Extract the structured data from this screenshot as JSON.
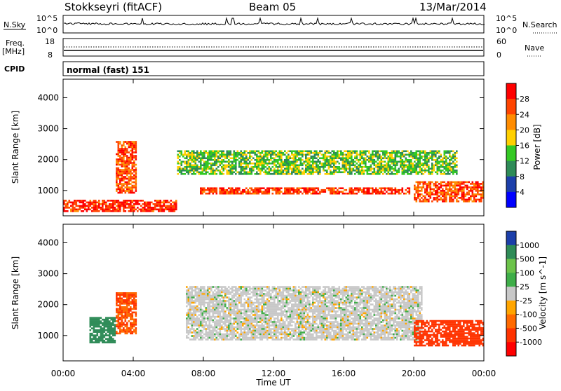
{
  "header": {
    "station": "Stokkseyri (fitACF)",
    "beam": "Beam 05",
    "date": "13/Mar/2014"
  },
  "noise_panel": {
    "left_label": "N.Sky",
    "right_label": "N.Search",
    "left_ticks": [
      "10^5",
      "10^0"
    ],
    "right_ticks": [
      "10^5",
      "10^0"
    ]
  },
  "freq_panel": {
    "left_label_line1": "Freq.",
    "left_label_line2": "[MHz]",
    "right_label": "Nave",
    "left_ticks": [
      "18",
      "8"
    ],
    "right_ticks": [
      "60",
      "0"
    ]
  },
  "cpid_panel": {
    "label": "CPID",
    "text": "normal (fast) 151"
  },
  "power_panel": {
    "ylabel": "Slant Range [km]",
    "yticks": [
      "4000",
      "3000",
      "2000",
      "1000"
    ],
    "colorbar_label": "Power [dB]",
    "colorbar_ticks": [
      "28",
      "24",
      "20",
      "16",
      "12",
      "8",
      "4"
    ],
    "colorbar_colors": [
      "#ff0000",
      "#ff4400",
      "#ff8c00",
      "#ffd000",
      "#34c924",
      "#2e8b57",
      "#1c3faa",
      "#0000ff"
    ]
  },
  "velocity_panel": {
    "ylabel": "Slant Range [km]",
    "yticks": [
      "4000",
      "3000",
      "2000",
      "1000"
    ],
    "colorbar_label": "Velocity [m s^-1]",
    "colorbar_ticks": [
      "1000",
      "500",
      "100",
      "25",
      "-25",
      "-100",
      "-500",
      "-1000"
    ],
    "colorbar_colors": [
      "#1c3faa",
      "#2e8b57",
      "#6cc34a",
      "#3fae49",
      "#c8c8c8",
      "#ffa500",
      "#ff6a00",
      "#ff3300",
      "#ff0000"
    ]
  },
  "x_axis": {
    "label": "Time UT",
    "ticks": [
      "00:00",
      "04:00",
      "08:00",
      "12:00",
      "16:00",
      "20:00",
      "00:00"
    ]
  },
  "chart_data": {
    "type": "heatmap",
    "x_range_hours": [
      0,
      24
    ],
    "y_range_km": [
      180,
      4600
    ],
    "power_regions": [
      {
        "name": "main-echo-band",
        "t_start": 7.8,
        "t_end": 19.8,
        "range_km": [
          850,
          1100
        ],
        "power_db": 26
      },
      {
        "name": "upper-band",
        "t_start": 6.5,
        "t_end": 22.5,
        "range_km": [
          1500,
          2300
        ],
        "power_db": 12
      },
      {
        "name": "early-near-range",
        "t_start": 0.0,
        "t_end": 6.5,
        "range_km": [
          250,
          700
        ],
        "power_db": 26
      },
      {
        "name": "dawn-arc",
        "t_start": 3.0,
        "t_end": 4.2,
        "range_km": [
          900,
          2600
        ],
        "power_db": 24
      },
      {
        "name": "late-rise",
        "t_start": 20.0,
        "t_end": 24.0,
        "range_km": [
          600,
          1300
        ],
        "power_db": 24
      }
    ],
    "velocity_regions": [
      {
        "name": "ground-scatter",
        "t_start": 7.0,
        "t_end": 20.5,
        "range_km": [
          800,
          2600
        ],
        "velocity_ms": 0
      },
      {
        "name": "dawn-flow",
        "t_start": 3.0,
        "t_end": 4.2,
        "range_km": [
          1000,
          2400
        ],
        "velocity_ms": -300
      },
      {
        "name": "early-towards",
        "t_start": 1.5,
        "t_end": 3.0,
        "range_km": [
          700,
          1600
        ],
        "velocity_ms": 500
      },
      {
        "name": "late-away",
        "t_start": 20.0,
        "t_end": 24.0,
        "range_km": [
          600,
          1500
        ],
        "velocity_ms": -400
      }
    ]
  }
}
